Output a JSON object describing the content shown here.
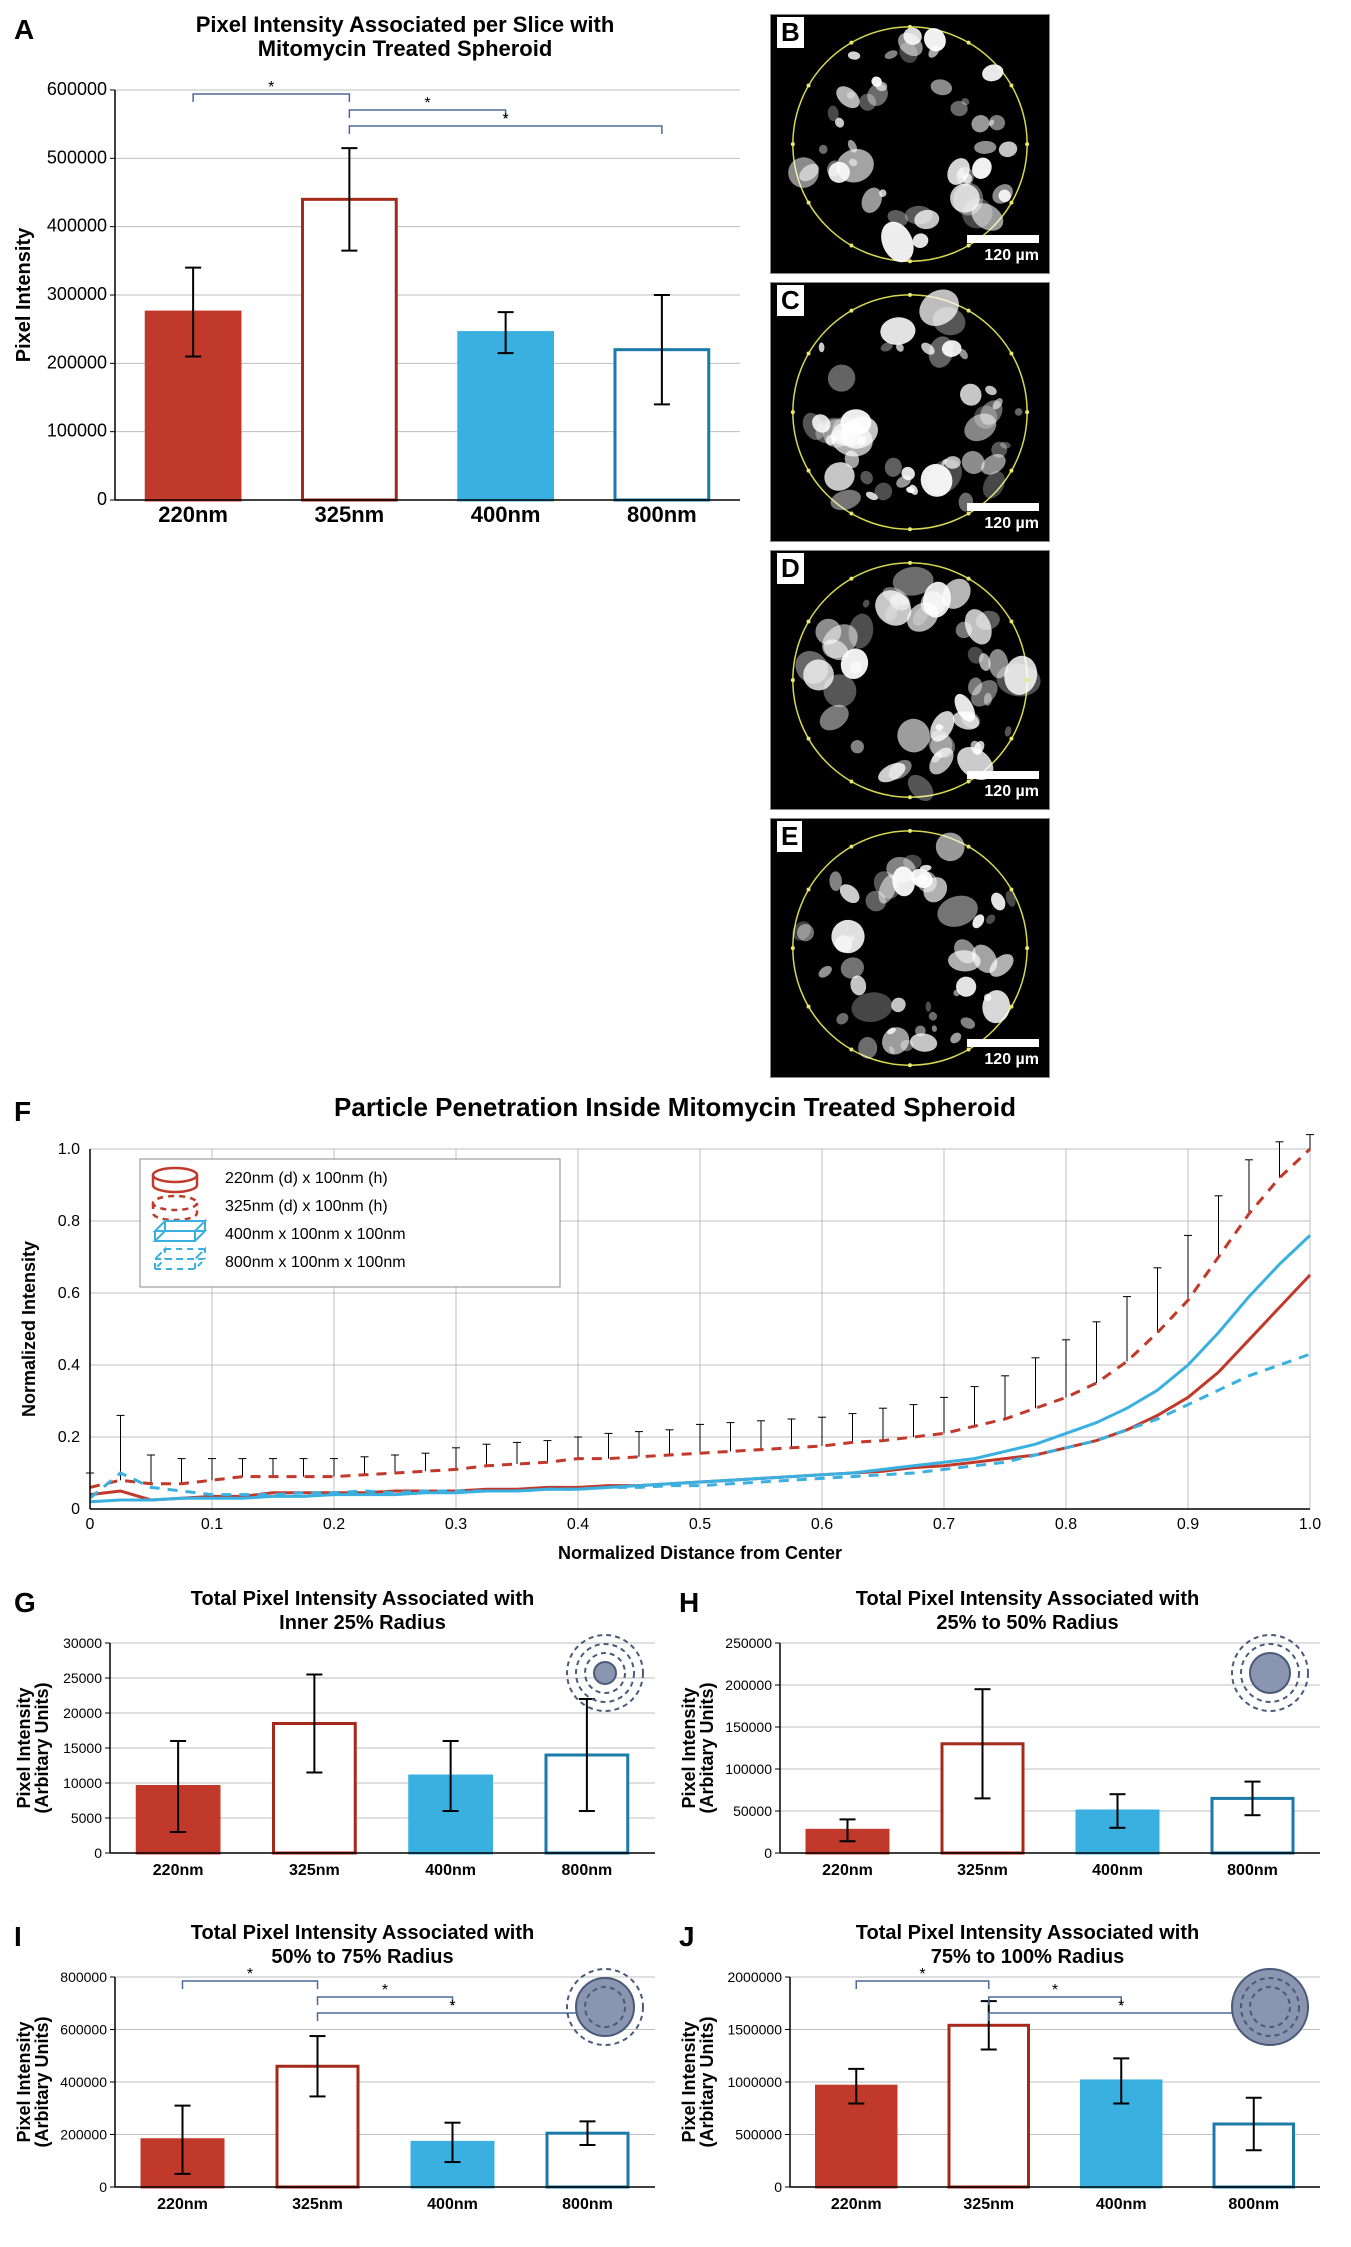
{
  "colors": {
    "red_fill": "#c0392b",
    "red_stroke": "#a52a1a",
    "blue_fill": "#3ab0e0",
    "blue_stroke": "#1a7aa8",
    "axis": "#000000",
    "grid": "#bfbfbf",
    "bracket": "#4a6a9a"
  },
  "panelA": {
    "label": "A",
    "title": "Pixel Intensity Associated per Slice with\nMitomycin Treated Spheroid",
    "ylabel": "Pixel Intensity",
    "ymax": 600000,
    "ytick": 100000,
    "cats": [
      "220nm",
      "325nm",
      "400nm",
      "800nm"
    ],
    "vals": [
      275000,
      440000,
      245000,
      220000
    ],
    "err": [
      65000,
      75000,
      30000,
      80000
    ],
    "fills": [
      "#c0392b",
      "#ffffff",
      "#3ab0e0",
      "#ffffff"
    ],
    "strokes": [
      "#c0392b",
      "#a52a1a",
      "#3ab0e0",
      "#1a7aa8"
    ],
    "brackets": [
      [
        0,
        1
      ],
      [
        1,
        2
      ],
      [
        1,
        3
      ]
    ]
  },
  "micros": {
    "labels": [
      "B",
      "C",
      "D",
      "E"
    ],
    "scale_text": "120 µm"
  },
  "panelF": {
    "label": "F",
    "title": "Particle Penetration Inside Mitomycin Treated Spheroid",
    "ylabel": "Normalized Intensity",
    "xlabel": "Normalized Distance from Center",
    "xlim": [
      0,
      1
    ],
    "xtick": 0.1,
    "ylim": [
      0,
      1
    ],
    "ytick": 0.2,
    "legend": [
      {
        "dash": false,
        "color": "#c0392b",
        "shape": "cyl",
        "label": "220nm (d) x 100nm (h)"
      },
      {
        "dash": true,
        "color": "#c0392b",
        "shape": "cyl",
        "label": "325nm (d) x 100nm (h)"
      },
      {
        "dash": false,
        "color": "#3ab0e0",
        "shape": "cube",
        "label": "400nm x 100nm x 100nm"
      },
      {
        "dash": true,
        "color": "#3ab0e0",
        "shape": "cube",
        "label": "800nm x 100nm x 100nm"
      }
    ],
    "series": [
      {
        "color": "#c0392b",
        "dash": false,
        "y": [
          0.04,
          0.05,
          0.025,
          0.03,
          0.035,
          0.035,
          0.045,
          0.045,
          0.045,
          0.045,
          0.05,
          0.05,
          0.05,
          0.055,
          0.055,
          0.06,
          0.06,
          0.065,
          0.065,
          0.07,
          0.075,
          0.08,
          0.085,
          0.09,
          0.095,
          0.1,
          0.105,
          0.115,
          0.12,
          0.13,
          0.14,
          0.15,
          0.17,
          0.19,
          0.22,
          0.26,
          0.31,
          0.38,
          0.47,
          0.56,
          0.65
        ]
      },
      {
        "color": "#c0392b",
        "dash": true,
        "y": [
          0.06,
          0.08,
          0.07,
          0.07,
          0.08,
          0.09,
          0.09,
          0.09,
          0.09,
          0.095,
          0.1,
          0.105,
          0.11,
          0.12,
          0.125,
          0.13,
          0.14,
          0.14,
          0.145,
          0.15,
          0.155,
          0.16,
          0.165,
          0.17,
          0.175,
          0.185,
          0.19,
          0.2,
          0.21,
          0.23,
          0.25,
          0.28,
          0.31,
          0.35,
          0.41,
          0.49,
          0.58,
          0.7,
          0.82,
          0.92,
          1.0
        ]
      },
      {
        "color": "#3ab0e0",
        "dash": false,
        "y": [
          0.02,
          0.025,
          0.025,
          0.03,
          0.03,
          0.03,
          0.035,
          0.035,
          0.04,
          0.04,
          0.04,
          0.045,
          0.045,
          0.05,
          0.05,
          0.055,
          0.055,
          0.06,
          0.065,
          0.07,
          0.075,
          0.08,
          0.085,
          0.09,
          0.095,
          0.1,
          0.11,
          0.12,
          0.13,
          0.14,
          0.16,
          0.18,
          0.21,
          0.24,
          0.28,
          0.33,
          0.4,
          0.49,
          0.59,
          0.68,
          0.76
        ]
      },
      {
        "color": "#3ab0e0",
        "dash": true,
        "y": [
          0.03,
          0.1,
          0.06,
          0.05,
          0.04,
          0.04,
          0.04,
          0.045,
          0.045,
          0.05,
          0.045,
          0.05,
          0.05,
          0.05,
          0.05,
          0.055,
          0.055,
          0.06,
          0.06,
          0.065,
          0.065,
          0.07,
          0.075,
          0.08,
          0.085,
          0.09,
          0.095,
          0.1,
          0.11,
          0.12,
          0.13,
          0.15,
          0.17,
          0.19,
          0.22,
          0.25,
          0.29,
          0.33,
          0.37,
          0.4,
          0.43
        ]
      }
    ],
    "error_series": 1,
    "errors": [
      0.04,
      0.18,
      0.08,
      0.07,
      0.06,
      0.05,
      0.05,
      0.05,
      0.05,
      0.05,
      0.05,
      0.05,
      0.06,
      0.06,
      0.06,
      0.06,
      0.06,
      0.07,
      0.07,
      0.07,
      0.08,
      0.08,
      0.08,
      0.08,
      0.08,
      0.08,
      0.09,
      0.09,
      0.1,
      0.11,
      0.12,
      0.14,
      0.16,
      0.17,
      0.18,
      0.18,
      0.18,
      0.17,
      0.15,
      0.1,
      0.04
    ]
  },
  "panelG": {
    "label": "G",
    "title": "Total Pixel Intensity Associated with\nInner 25% Radius",
    "ylabel": "Pixel Intensity\n(Arbitary Units)",
    "ymax": 30000,
    "ytick": 5000,
    "cats": [
      "220nm",
      "325nm",
      "400nm",
      "800nm"
    ],
    "vals": [
      9500,
      18500,
      11000,
      14000
    ],
    "err": [
      6500,
      7000,
      5000,
      8000
    ],
    "fills": [
      "#c0392b",
      "#ffffff",
      "#3ab0e0",
      "#ffffff"
    ],
    "strokes": [
      "#c0392b",
      "#a52a1a",
      "#3ab0e0",
      "#1a7aa8"
    ],
    "brackets": [],
    "ring": 0
  },
  "panelH": {
    "label": "H",
    "title": "Total Pixel Intensity Associated with\n25% to 50% Radius",
    "ylabel": "Pixel Intensity\n(Arbitary Units)",
    "ymax": 250000,
    "ytick": 50000,
    "cats": [
      "220nm",
      "325nm",
      "400nm",
      "800nm"
    ],
    "vals": [
      27000,
      130000,
      50000,
      65000
    ],
    "err": [
      13000,
      65000,
      20000,
      20000
    ],
    "fills": [
      "#c0392b",
      "#ffffff",
      "#3ab0e0",
      "#ffffff"
    ],
    "strokes": [
      "#c0392b",
      "#a52a1a",
      "#3ab0e0",
      "#1a7aa8"
    ],
    "brackets": [],
    "ring": 1
  },
  "panelI": {
    "label": "I",
    "title": "Total Pixel Intensity Associated with\n50% to 75% Radius",
    "ylabel": "Pixel Intensity\n(Arbitary Units)",
    "ymax": 800000,
    "ytick": 200000,
    "cats": [
      "220nm",
      "325nm",
      "400nm",
      "800nm"
    ],
    "vals": [
      180000,
      460000,
      170000,
      205000
    ],
    "err": [
      130000,
      115000,
      75000,
      45000
    ],
    "fills": [
      "#c0392b",
      "#ffffff",
      "#3ab0e0",
      "#ffffff"
    ],
    "strokes": [
      "#c0392b",
      "#a52a1a",
      "#3ab0e0",
      "#1a7aa8"
    ],
    "brackets": [
      [
        0,
        1
      ],
      [
        1,
        2
      ],
      [
        1,
        3
      ]
    ],
    "ring": 2
  },
  "panelJ": {
    "label": "J",
    "title": "Total Pixel Intensity Associated with\n75% to 100% Radius",
    "ylabel": "Pixel Intensity\n(Arbitary Units)",
    "ymax": 2000000,
    "ytick": 500000,
    "cats": [
      "220nm",
      "325nm",
      "400nm",
      "800nm"
    ],
    "vals": [
      960000,
      1540000,
      1010000,
      600000
    ],
    "err": [
      165000,
      230000,
      215000,
      250000
    ],
    "fills": [
      "#c0392b",
      "#ffffff",
      "#3ab0e0",
      "#ffffff"
    ],
    "strokes": [
      "#c0392b",
      "#a52a1a",
      "#3ab0e0",
      "#1a7aa8"
    ],
    "brackets": [
      [
        0,
        1
      ],
      [
        1,
        2
      ],
      [
        1,
        3
      ]
    ],
    "ring": 3
  }
}
